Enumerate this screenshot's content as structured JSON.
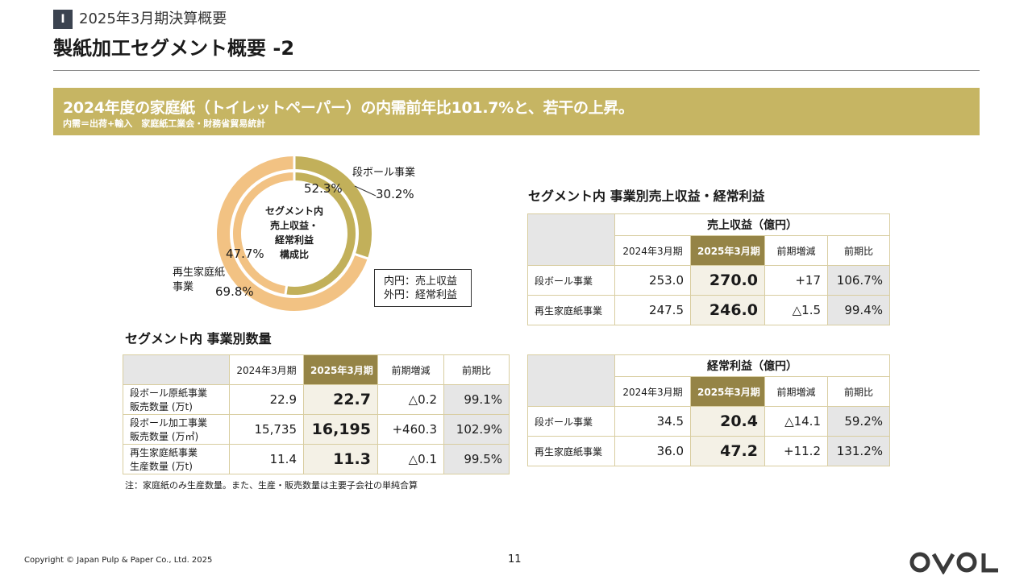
{
  "section": {
    "badge": "I",
    "title": "2025年3月期決算概要"
  },
  "page_title": "製紙加工セグメント概要 -2",
  "banner": {
    "main": "2024年度の家庭紙（トイレットペーパー）の内需前年比101.7%と、若干の上昇。",
    "sub": "内需＝出荷+輸入　家庭紙工業会・財務省貿易統計"
  },
  "donut": {
    "center_lines": [
      "セグメント内",
      "売上収益・",
      "経常利益",
      "構成比"
    ],
    "segments": [
      {
        "name": "段ボール事業",
        "inner_pct": 52.3,
        "outer_pct": 30.2,
        "inner_label": "52.3%",
        "outer_label": "30.2%"
      },
      {
        "name_lines": [
          "再生家庭紙",
          "事業"
        ],
        "inner_pct": 47.7,
        "outer_pct": 69.8,
        "inner_label": "47.7%",
        "outer_label": "69.8%"
      }
    ],
    "colors": {
      "cardboard": "#c2b05a",
      "tissue": "#f2c283"
    },
    "legend": [
      "内円：売上収益",
      "外円：経常利益"
    ]
  },
  "volume_table": {
    "heading": "セグメント内 事業別数量",
    "columns": [
      "2024年3月期",
      "2025年3月期",
      "前期増減",
      "前期比"
    ],
    "rows": [
      {
        "label_lines": [
          "段ボール原紙事業",
          "販売数量 (万t)"
        ],
        "values": [
          "22.9",
          "22.7",
          "△0.2",
          "99.1%"
        ]
      },
      {
        "label_lines": [
          "段ボール加工事業",
          "販売数量 (万㎡)"
        ],
        "values": [
          "15,735",
          "16,195",
          "+460.3",
          "102.9%"
        ]
      },
      {
        "label_lines": [
          "再生家庭紙事業",
          "生産数量 (万t)"
        ],
        "values": [
          "11.4",
          "11.3",
          "△0.1",
          "99.5%"
        ]
      }
    ],
    "note": "注：家庭紙のみ生産数量。また、生産・販売数量は主要子会社の単純合算"
  },
  "revenue_heading": "セグメント内 事業別売上収益・経常利益",
  "revenue_table": {
    "group": "売上収益（億円）",
    "columns": [
      "2024年3月期",
      "2025年3月期",
      "前期増減",
      "前期比"
    ],
    "rows": [
      {
        "label": "段ボール事業",
        "values": [
          "253.0",
          "270.0",
          "+17",
          "106.7%"
        ]
      },
      {
        "label": "再生家庭紙事業",
        "values": [
          "247.5",
          "246.0",
          "△1.5",
          "99.4%"
        ]
      }
    ]
  },
  "profit_table": {
    "group": "経常利益（億円）",
    "columns": [
      "2024年3月期",
      "2025年3月期",
      "前期増減",
      "前期比"
    ],
    "rows": [
      {
        "label": "段ボール事業",
        "values": [
          "34.5",
          "20.4",
          "△14.1",
          "59.2%"
        ]
      },
      {
        "label": "再生家庭紙事業",
        "values": [
          "36.0",
          "47.2",
          "+11.2",
          "131.2%"
        ]
      }
    ]
  },
  "footer": {
    "copyright": "Copyright © Japan Pulp & Paper Co., Ltd. 2025",
    "page": "11",
    "logo": "OVOL"
  }
}
